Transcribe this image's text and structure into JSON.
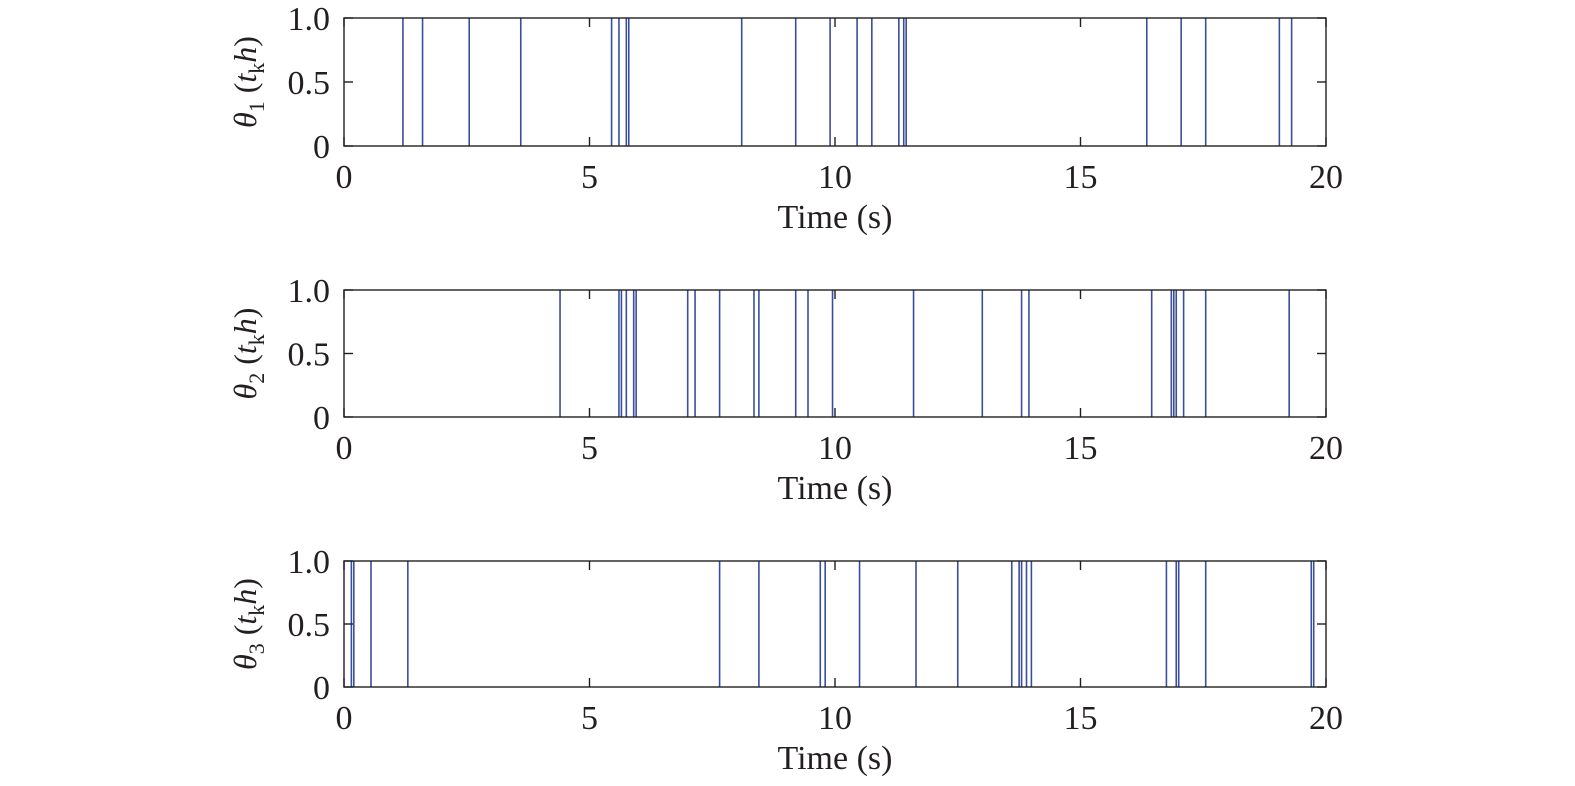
{
  "colors": {
    "series": "#3a4ea0",
    "axes": "#231f20"
  },
  "chart_data": [
    {
      "type": "line",
      "style": "impulse",
      "ylabel": {
        "symbol": "θ",
        "subscript": "1",
        "arg": "t",
        "arg_sub": "k",
        "arg_tail": "h"
      },
      "xlabel": "Time (s)",
      "xlim": [
        0,
        20
      ],
      "ylim": [
        0,
        1
      ],
      "xticks": [
        0,
        5,
        10,
        15,
        20
      ],
      "yticks": [
        0,
        0.5,
        1.0
      ],
      "ytick_labels": [
        "0",
        "0.5",
        "1.0"
      ],
      "grid": false,
      "events_value": 1,
      "events_x": [
        1.2,
        1.6,
        2.55,
        3.6,
        5.45,
        5.6,
        5.75,
        5.8,
        8.1,
        9.2,
        9.9,
        10.45,
        10.75,
        11.3,
        11.4,
        11.45,
        16.35,
        17.05,
        17.55,
        19.05,
        19.3
      ]
    },
    {
      "type": "line",
      "style": "impulse",
      "ylabel": {
        "symbol": "θ",
        "subscript": "2",
        "arg": "t",
        "arg_sub": "k",
        "arg_tail": "h"
      },
      "xlabel": "Time (s)",
      "xlim": [
        0,
        20
      ],
      "ylim": [
        0,
        1
      ],
      "xticks": [
        0,
        5,
        10,
        15,
        20
      ],
      "yticks": [
        0,
        0.5,
        1.0
      ],
      "ytick_labels": [
        "0",
        "0.5",
        "1.0"
      ],
      "grid": false,
      "events_value": 1,
      "events_x": [
        4.4,
        5.6,
        5.65,
        5.75,
        5.9,
        5.95,
        7.0,
        7.15,
        7.65,
        8.35,
        8.45,
        9.2,
        9.45,
        9.95,
        11.6,
        13.0,
        13.8,
        13.95,
        16.45,
        16.85,
        16.9,
        16.95,
        17.1,
        17.55,
        19.25
      ]
    },
    {
      "type": "line",
      "style": "impulse",
      "ylabel": {
        "symbol": "θ",
        "subscript": "3",
        "arg": "t",
        "arg_sub": "k",
        "arg_tail": "h"
      },
      "xlabel": "Time (s)",
      "xlim": [
        0,
        20
      ],
      "ylim": [
        0,
        1
      ],
      "xticks": [
        0,
        5,
        10,
        15,
        20
      ],
      "yticks": [
        0,
        0.5,
        1.0
      ],
      "ytick_labels": [
        "0",
        "0.5",
        "1.0"
      ],
      "grid": false,
      "events_value": 1,
      "events_x": [
        0.15,
        0.2,
        0.55,
        1.3,
        7.65,
        8.45,
        9.7,
        9.8,
        10.5,
        11.65,
        12.5,
        13.6,
        13.75,
        13.8,
        13.9,
        14.0,
        16.75,
        16.95,
        17.0,
        17.55,
        19.7,
        19.75
      ]
    }
  ]
}
